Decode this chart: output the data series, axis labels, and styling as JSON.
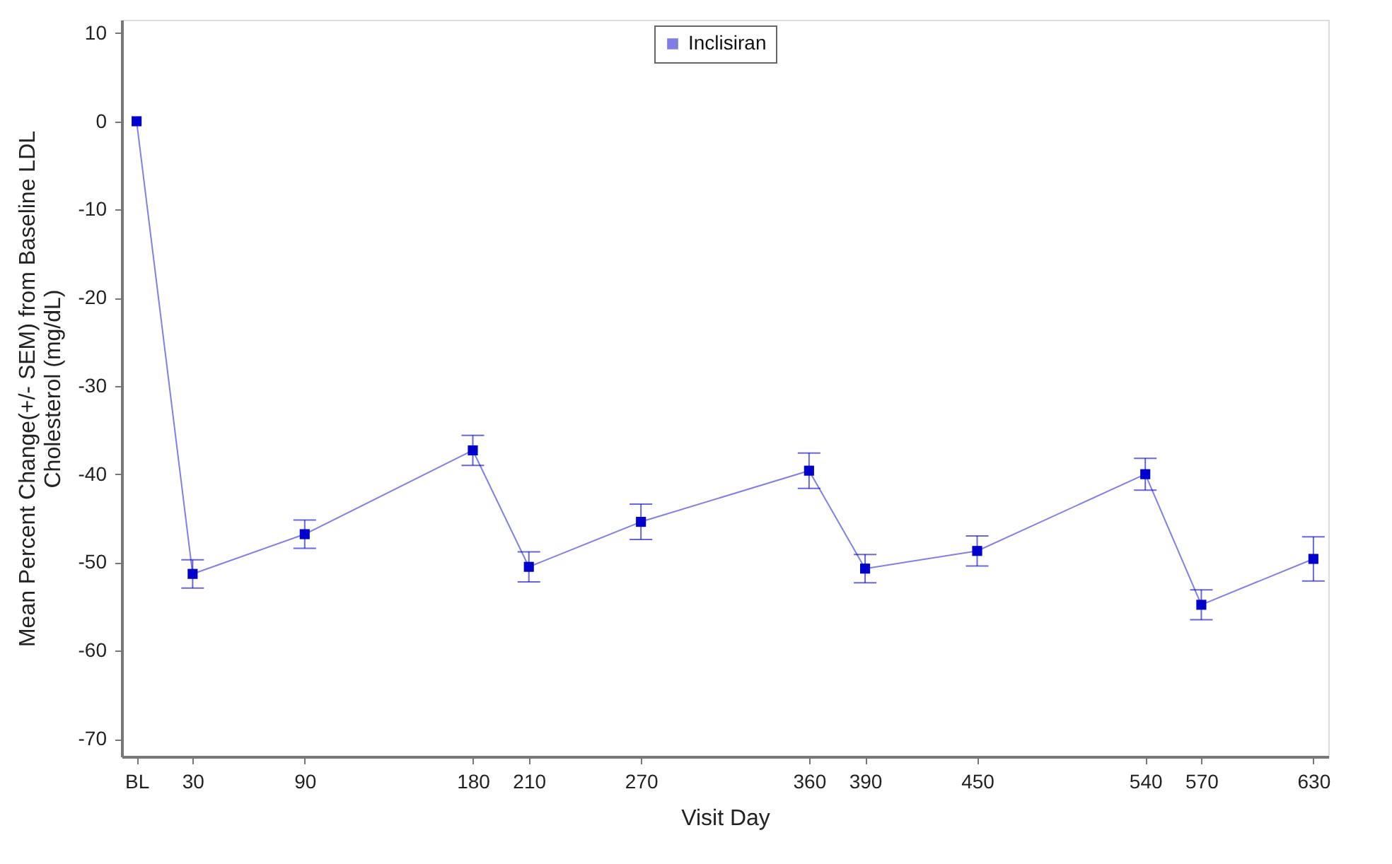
{
  "chart_data": {
    "type": "line",
    "xlabel": "Visit Day",
    "ylabel": "Mean Percent Change(+/- SEM) from Baseline LDL Cholesterol (mg/dL)",
    "x": [
      0,
      30,
      90,
      180,
      210,
      270,
      360,
      390,
      450,
      540,
      570,
      630
    ],
    "series": [
      {
        "name": "Inclisiran",
        "color": "#0000cc",
        "values": [
          0,
          -51.3,
          -46.8,
          -37.3,
          -50.5,
          -45.4,
          -39.6,
          -50.7,
          -48.7,
          -40.0,
          -54.8,
          -49.6
        ],
        "errors": [
          null,
          1.6,
          1.6,
          1.7,
          1.7,
          2.0,
          2.0,
          1.6,
          1.7,
          1.8,
          1.7,
          2.5
        ]
      }
    ],
    "xlim": [
      -8,
      638
    ],
    "ylim": [
      -72,
      11.5
    ],
    "xticks": [
      {
        "value": 0,
        "label": "BL"
      },
      30,
      90,
      180,
      210,
      270,
      360,
      390,
      450,
      540,
      570,
      630
    ],
    "yticks": [
      -70,
      -60,
      -50,
      -40,
      -30,
      -20,
      -10,
      0,
      10
    ],
    "marker": "square",
    "line_style": "solid",
    "grid": false,
    "legend": "top"
  }
}
